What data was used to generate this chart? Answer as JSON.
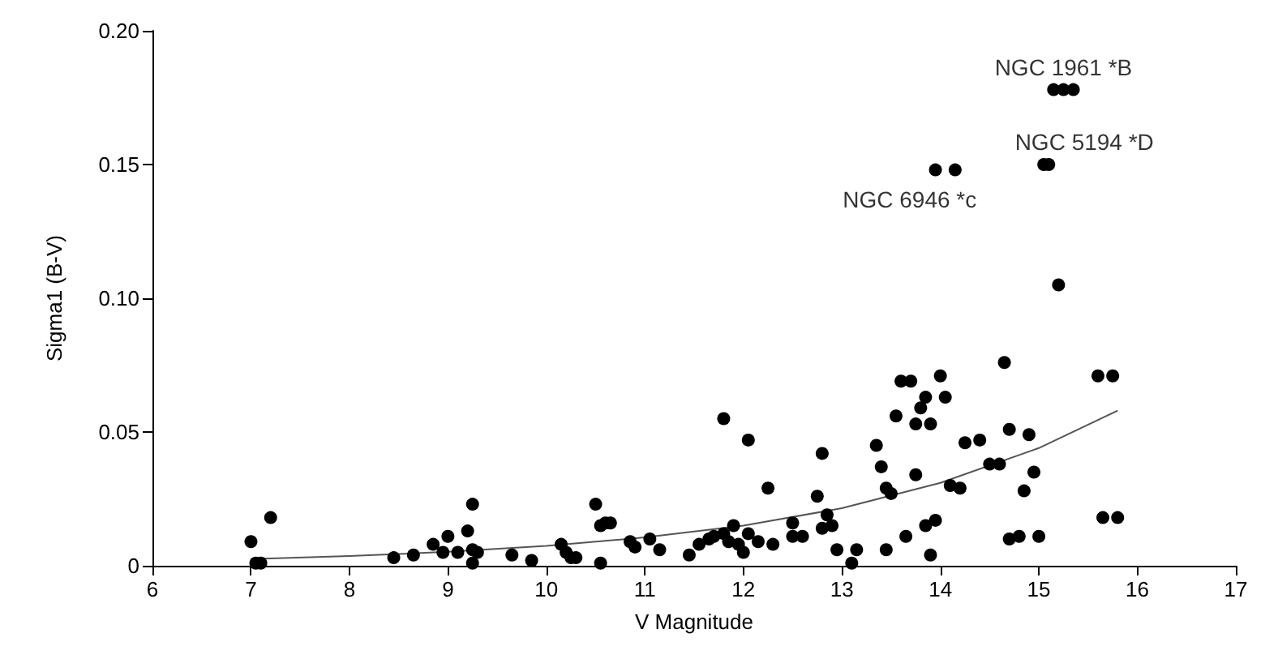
{
  "chart_data": {
    "type": "scatter",
    "xlabel": "V Magnitude",
    "ylabel": "Sigma1 (B-V)",
    "xlim": [
      6,
      17
    ],
    "xticks": [
      6,
      7,
      8,
      9,
      10,
      11,
      12,
      13,
      14,
      15,
      16,
      17
    ],
    "ylim": [
      0,
      0.2
    ],
    "yticks": [
      0,
      {
        "value": 0.05,
        "label": "0.05"
      },
      {
        "value": 0.1,
        "label": "0.10"
      },
      {
        "value": 0.15,
        "label": "0.15"
      },
      {
        "value": 0.2,
        "label": "0.20"
      }
    ],
    "grid": false,
    "marker": "circle",
    "series": [
      {
        "color": "#000000",
        "x": [
          7.0,
          7.05,
          7.1,
          7.2,
          8.45,
          8.65,
          8.85,
          8.95,
          9.0,
          9.1,
          9.2,
          9.25,
          9.25,
          9.3,
          9.25,
          9.65,
          9.85,
          10.15,
          10.2,
          10.25,
          10.3,
          10.5,
          10.55,
          10.6,
          10.55,
          10.65,
          10.85,
          10.9,
          11.05,
          11.15,
          11.45,
          11.55,
          11.65,
          11.7,
          11.8,
          11.8,
          11.85,
          11.9,
          11.95,
          12.0,
          12.05,
          12.05,
          12.15,
          12.25,
          12.3,
          12.5,
          12.5,
          12.6,
          12.75,
          12.8,
          12.85,
          12.8,
          12.9,
          12.95,
          13.1,
          13.15,
          13.35,
          13.4,
          13.45,
          13.5,
          13.45,
          13.55,
          13.6,
          13.7,
          13.65,
          13.75,
          13.75,
          13.8,
          13.85,
          13.9,
          13.85,
          13.9,
          13.95,
          14.0,
          14.05,
          14.1,
          14.2,
          14.25,
          14.4,
          14.5,
          14.6,
          14.65,
          14.7,
          14.7,
          14.8,
          14.85,
          14.9,
          14.95,
          15.0,
          15.2,
          15.6,
          15.65,
          15.75,
          15.8,
          13.95,
          14.15,
          15.05,
          15.1,
          15.15,
          15.25,
          15.35
        ],
        "values": [
          0.009,
          0.001,
          0.001,
          0.018,
          0.003,
          0.004,
          0.008,
          0.005,
          0.011,
          0.005,
          0.013,
          0.006,
          0.023,
          0.005,
          0.001,
          0.004,
          0.002,
          0.008,
          0.005,
          0.003,
          0.003,
          0.023,
          0.015,
          0.016,
          0.001,
          0.016,
          0.009,
          0.007,
          0.01,
          0.006,
          0.004,
          0.008,
          0.01,
          0.011,
          0.055,
          0.012,
          0.009,
          0.015,
          0.008,
          0.005,
          0.047,
          0.012,
          0.009,
          0.029,
          0.008,
          0.011,
          0.016,
          0.011,
          0.026,
          0.042,
          0.019,
          0.014,
          0.015,
          0.006,
          0.001,
          0.006,
          0.045,
          0.037,
          0.029,
          0.027,
          0.006,
          0.056,
          0.069,
          0.069,
          0.011,
          0.034,
          0.053,
          0.059,
          0.063,
          0.053,
          0.015,
          0.004,
          0.017,
          0.071,
          0.063,
          0.03,
          0.029,
          0.046,
          0.047,
          0.038,
          0.038,
          0.076,
          0.051,
          0.01,
          0.011,
          0.028,
          0.049,
          0.035,
          0.011,
          0.105,
          0.071,
          0.018,
          0.071,
          0.018,
          0.148,
          0.148,
          0.15,
          0.15,
          0.178,
          0.178,
          0.178
        ]
      },
      {
        "type": "line",
        "color": "#555555",
        "marker": "none",
        "x": [
          7,
          8,
          9,
          10,
          11,
          12,
          13,
          14,
          15,
          15.8
        ],
        "values": [
          0.0025,
          0.0036,
          0.0052,
          0.0074,
          0.0106,
          0.015,
          0.0215,
          0.031,
          0.044,
          0.058
        ]
      }
    ],
    "annotations": [
      {
        "text": "NGC 1961 *B",
        "x": 15.25,
        "y": 0.178
      },
      {
        "text": "NGC 5194 *D",
        "x": 15.1,
        "y": 0.15
      },
      {
        "text": "NGC 6946 *c",
        "x": 14.05,
        "y": 0.148
      }
    ]
  }
}
